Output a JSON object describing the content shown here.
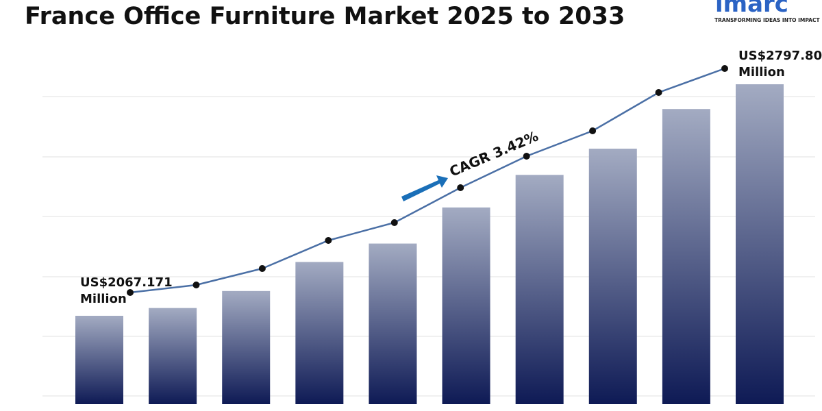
{
  "chart_data": {
    "type": "bar",
    "title": "France Office Furniture Market 2025 to 2033",
    "values": [
      2067.171,
      2091.7,
      2145.4,
      2237.0,
      2295.1,
      2409.0,
      2511.8,
      2594.5,
      2719.6,
      2797.8
    ],
    "value_labels": [
      "US$2067.171\nMillion",
      null,
      null,
      null,
      null,
      null,
      null,
      null,
      null,
      "US$2797.80\nMillion"
    ],
    "annotation": "CAGR 3.42%",
    "line_overlay": true,
    "bar_color_top": "#a3abc2",
    "bar_color_bottom": "#0e1a55",
    "line_color": "#4a6fa5",
    "logo": {
      "name": "imarc",
      "tagline": "TRANSFORMING IDEAS INTO IMPACT"
    }
  }
}
